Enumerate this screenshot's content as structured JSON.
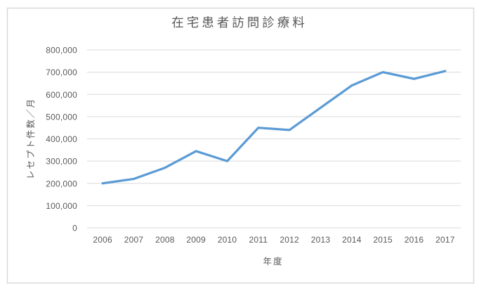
{
  "window": {
    "background_color": "#ffffff",
    "border_color": "#d9d9d9"
  },
  "chart_data": {
    "type": "line",
    "title": "在宅患者訪問診療料",
    "xlabel": "年度",
    "ylabel": "レセプト件数／月",
    "categories": [
      "2006",
      "2007",
      "2008",
      "2009",
      "2010",
      "2011",
      "2012",
      "2013",
      "2014",
      "2015",
      "2016",
      "2017"
    ],
    "values": [
      200000,
      220000,
      270000,
      345000,
      300000,
      450000,
      440000,
      540000,
      640000,
      700000,
      670000,
      705000
    ],
    "ylim": [
      0,
      800000
    ],
    "ytick_step": 100000,
    "ytick_labels": [
      "0",
      "100,000",
      "200,000",
      "300,000",
      "400,000",
      "500,000",
      "600,000",
      "700,000",
      "800,000"
    ],
    "grid": true,
    "legend": false,
    "line_color": "#5b9bd5",
    "line_width": 3.25,
    "grid_color": "#d9d9d9",
    "text_color": "#595959"
  }
}
